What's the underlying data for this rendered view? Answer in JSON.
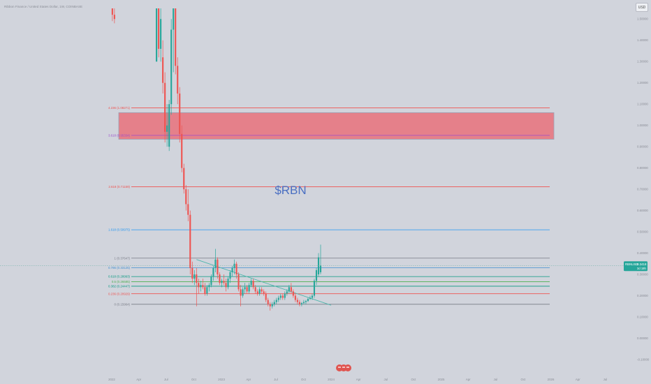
{
  "header": {
    "symbol_line": "Ribbon Finance / United States Dollar, 1W, COINBASE"
  },
  "currency_button": "USD",
  "watermark": "$RBN",
  "price_tag": {
    "symbol": "RBNUSD",
    "price": "0.3418",
    "countdown": "3d 19h"
  },
  "colors": {
    "background": "#d1d4dc",
    "up": "#26a69a",
    "down": "#ef5350",
    "zone_fill": "#e5808a",
    "zone_stroke": "#9aa0b4",
    "trendline": "#4db6ac",
    "watermark": "#4a6fc2",
    "price_line": "#7fb7b0"
  },
  "chart_data": {
    "type": "candlestick",
    "title": "",
    "x_tick_labels": [
      "2022",
      "Apr",
      "Jul",
      "Oct",
      "2023",
      "Apr",
      "Jul",
      "Oct",
      "2024",
      "Apr",
      "Jul",
      "Oct",
      "2025",
      "Apr",
      "Jul",
      "Oct",
      "2026",
      "Apr",
      "Jul"
    ],
    "y_tick_labels": [
      "1.50000",
      "1.40000",
      "1.30000",
      "1.20000",
      "1.10000",
      "1.00000",
      "0.90000",
      "0.80000",
      "0.70000",
      "0.60000",
      "0.50000",
      "0.40000",
      "0.30000",
      "0.20000",
      "0.10000",
      "0.00000",
      "-0.10000"
    ],
    "ylim": [
      -0.11,
      1.55
    ],
    "fib_levels": [
      {
        "label": "4.236 (1.08271)",
        "value": 1.08271,
        "color": "#ef5350"
      },
      {
        "label": "3.618 (0.95334)",
        "value": 0.95334,
        "color": "#9c4dcc"
      },
      {
        "label": "2.618 (0.71159)",
        "value": 0.71159,
        "color": "#ef5350"
      },
      {
        "label": "1.618 (0.50975)",
        "value": 0.50975,
        "color": "#2196f3"
      },
      {
        "label": "1 (0.37647)",
        "value": 0.37647,
        "color": "#787b86"
      },
      {
        "label": "0.786 (0.33125)",
        "value": 0.33125,
        "color": "#3f8fd2"
      },
      {
        "label": "0.618 (0.28993)",
        "value": 0.28993,
        "color": "#089981"
      },
      {
        "label": "0.5 (0.26585)",
        "value": 0.26585,
        "color": "#4caf50"
      },
      {
        "label": "0.382 (0.24447)",
        "value": 0.24447,
        "color": "#089981"
      },
      {
        "label": "0.236 (0.20929)",
        "value": 0.20929,
        "color": "#ef5350"
      },
      {
        "label": "0 (0.15964)",
        "value": 0.15964,
        "color": "#787b86"
      }
    ],
    "resistance_zone": {
      "top": 1.06,
      "bottom": 0.935
    },
    "trendline": {
      "from": {
        "x": "2022-10-10",
        "y": 0.37
      },
      "to": {
        "x": "2024-01-01",
        "y": 0.155
      }
    },
    "current_price": 0.3418,
    "candles": [
      {
        "d": "2022-01-03",
        "o": 1.55,
        "h": 1.55,
        "l": 1.49,
        "c": 1.52
      },
      {
        "d": "2022-01-10",
        "o": 1.52,
        "h": 1.55,
        "l": 1.48,
        "c": 1.5
      },
      {
        "d": "2022-05-30",
        "o": 1.3,
        "h": 1.55,
        "l": 1.3,
        "c": 1.55
      },
      {
        "d": "2022-06-06",
        "o": 1.55,
        "h": 1.55,
        "l": 1.32,
        "c": 1.36
      },
      {
        "d": "2022-06-13",
        "o": 1.36,
        "h": 1.55,
        "l": 1.3,
        "c": 1.5
      },
      {
        "d": "2022-06-20",
        "o": 1.32,
        "h": 1.4,
        "l": 1.15,
        "c": 1.2
      },
      {
        "d": "2022-06-27",
        "o": 1.2,
        "h": 1.25,
        "l": 0.92,
        "c": 0.97
      },
      {
        "d": "2022-07-04",
        "o": 0.97,
        "h": 1.1,
        "l": 0.9,
        "c": 1.0
      },
      {
        "d": "2022-07-11",
        "o": 0.9,
        "h": 1.12,
        "l": 0.88,
        "c": 1.1
      },
      {
        "d": "2022-07-18",
        "o": 1.1,
        "h": 1.5,
        "l": 1.05,
        "c": 1.45
      },
      {
        "d": "2022-07-25",
        "o": 1.45,
        "h": 1.55,
        "l": 1.25,
        "c": 1.55
      },
      {
        "d": "2022-08-01",
        "o": 1.55,
        "h": 1.55,
        "l": 1.24,
        "c": 1.28
      },
      {
        "d": "2022-08-08",
        "o": 1.28,
        "h": 1.32,
        "l": 1.1,
        "c": 1.15
      },
      {
        "d": "2022-08-15",
        "o": 1.15,
        "h": 1.18,
        "l": 0.92,
        "c": 0.96
      },
      {
        "d": "2022-08-22",
        "o": 0.96,
        "h": 1.0,
        "l": 0.78,
        "c": 0.8
      },
      {
        "d": "2022-08-29",
        "o": 0.8,
        "h": 0.82,
        "l": 0.68,
        "c": 0.7
      },
      {
        "d": "2022-09-05",
        "o": 0.7,
        "h": 0.72,
        "l": 0.6,
        "c": 0.63
      },
      {
        "d": "2022-09-12",
        "o": 0.63,
        "h": 0.7,
        "l": 0.55,
        "c": 0.58
      },
      {
        "d": "2022-09-19",
        "o": 0.58,
        "h": 0.6,
        "l": 0.3,
        "c": 0.33
      },
      {
        "d": "2022-09-26",
        "o": 0.33,
        "h": 0.36,
        "l": 0.26,
        "c": 0.28
      },
      {
        "d": "2022-10-03",
        "o": 0.28,
        "h": 0.32,
        "l": 0.25,
        "c": 0.3
      },
      {
        "d": "2022-10-10",
        "o": 0.3,
        "h": 0.33,
        "l": 0.15,
        "c": 0.26
      },
      {
        "d": "2022-10-17",
        "o": 0.26,
        "h": 0.28,
        "l": 0.21,
        "c": 0.24
      },
      {
        "d": "2022-10-24",
        "o": 0.24,
        "h": 0.27,
        "l": 0.22,
        "c": 0.25
      },
      {
        "d": "2022-10-31",
        "o": 0.25,
        "h": 0.28,
        "l": 0.23,
        "c": 0.24
      },
      {
        "d": "2022-11-07",
        "o": 0.24,
        "h": 0.26,
        "l": 0.2,
        "c": 0.21
      },
      {
        "d": "2022-11-14",
        "o": 0.21,
        "h": 0.25,
        "l": 0.2,
        "c": 0.24
      },
      {
        "d": "2022-11-21",
        "o": 0.24,
        "h": 0.26,
        "l": 0.22,
        "c": 0.25
      },
      {
        "d": "2022-11-28",
        "o": 0.25,
        "h": 0.3,
        "l": 0.24,
        "c": 0.29
      },
      {
        "d": "2022-12-05",
        "o": 0.29,
        "h": 0.34,
        "l": 0.27,
        "c": 0.33
      },
      {
        "d": "2022-12-12",
        "o": 0.33,
        "h": 0.42,
        "l": 0.31,
        "c": 0.37
      },
      {
        "d": "2022-12-19",
        "o": 0.37,
        "h": 0.38,
        "l": 0.28,
        "c": 0.3
      },
      {
        "d": "2022-12-26",
        "o": 0.3,
        "h": 0.31,
        "l": 0.25,
        "c": 0.26
      },
      {
        "d": "2023-01-02",
        "o": 0.26,
        "h": 0.28,
        "l": 0.24,
        "c": 0.27
      },
      {
        "d": "2023-01-09",
        "o": 0.27,
        "h": 0.3,
        "l": 0.25,
        "c": 0.26
      },
      {
        "d": "2023-01-16",
        "o": 0.26,
        "h": 0.28,
        "l": 0.22,
        "c": 0.24
      },
      {
        "d": "2023-01-23",
        "o": 0.24,
        "h": 0.29,
        "l": 0.23,
        "c": 0.28
      },
      {
        "d": "2023-01-30",
        "o": 0.28,
        "h": 0.32,
        "l": 0.26,
        "c": 0.31
      },
      {
        "d": "2023-02-06",
        "o": 0.31,
        "h": 0.34,
        "l": 0.29,
        "c": 0.33
      },
      {
        "d": "2023-02-13",
        "o": 0.33,
        "h": 0.37,
        "l": 0.3,
        "c": 0.35
      },
      {
        "d": "2023-02-20",
        "o": 0.35,
        "h": 0.36,
        "l": 0.28,
        "c": 0.3
      },
      {
        "d": "2023-02-27",
        "o": 0.3,
        "h": 0.31,
        "l": 0.22,
        "c": 0.23
      },
      {
        "d": "2023-03-06",
        "o": 0.23,
        "h": 0.25,
        "l": 0.15,
        "c": 0.2
      },
      {
        "d": "2023-03-13",
        "o": 0.2,
        "h": 0.24,
        "l": 0.19,
        "c": 0.23
      },
      {
        "d": "2023-03-20",
        "o": 0.23,
        "h": 0.26,
        "l": 0.21,
        "c": 0.24
      },
      {
        "d": "2023-03-27",
        "o": 0.24,
        "h": 0.25,
        "l": 0.21,
        "c": 0.22
      },
      {
        "d": "2023-04-03",
        "o": 0.22,
        "h": 0.26,
        "l": 0.21,
        "c": 0.25
      },
      {
        "d": "2023-04-10",
        "o": 0.25,
        "h": 0.28,
        "l": 0.24,
        "c": 0.27
      },
      {
        "d": "2023-04-17",
        "o": 0.27,
        "h": 0.28,
        "l": 0.23,
        "c": 0.24
      },
      {
        "d": "2023-04-24",
        "o": 0.24,
        "h": 0.25,
        "l": 0.21,
        "c": 0.22
      },
      {
        "d": "2023-05-01",
        "o": 0.22,
        "h": 0.23,
        "l": 0.2,
        "c": 0.21
      },
      {
        "d": "2023-05-08",
        "o": 0.21,
        "h": 0.24,
        "l": 0.2,
        "c": 0.23
      },
      {
        "d": "2023-05-15",
        "o": 0.23,
        "h": 0.24,
        "l": 0.21,
        "c": 0.22
      },
      {
        "d": "2023-05-22",
        "o": 0.22,
        "h": 0.23,
        "l": 0.2,
        "c": 0.21
      },
      {
        "d": "2023-05-29",
        "o": 0.21,
        "h": 0.22,
        "l": 0.17,
        "c": 0.18
      },
      {
        "d": "2023-06-05",
        "o": 0.18,
        "h": 0.19,
        "l": 0.15,
        "c": 0.16
      },
      {
        "d": "2023-06-12",
        "o": 0.16,
        "h": 0.17,
        "l": 0.13,
        "c": 0.15
      },
      {
        "d": "2023-06-19",
        "o": 0.15,
        "h": 0.17,
        "l": 0.14,
        "c": 0.16
      },
      {
        "d": "2023-06-26",
        "o": 0.16,
        "h": 0.18,
        "l": 0.15,
        "c": 0.17
      },
      {
        "d": "2023-07-03",
        "o": 0.17,
        "h": 0.19,
        "l": 0.16,
        "c": 0.18
      },
      {
        "d": "2023-07-10",
        "o": 0.18,
        "h": 0.2,
        "l": 0.17,
        "c": 0.19
      },
      {
        "d": "2023-07-17",
        "o": 0.19,
        "h": 0.21,
        "l": 0.18,
        "c": 0.2
      },
      {
        "d": "2023-07-24",
        "o": 0.2,
        "h": 0.21,
        "l": 0.18,
        "c": 0.19
      },
      {
        "d": "2023-07-31",
        "o": 0.19,
        "h": 0.22,
        "l": 0.18,
        "c": 0.21
      },
      {
        "d": "2023-08-07",
        "o": 0.21,
        "h": 0.23,
        "l": 0.2,
        "c": 0.22
      },
      {
        "d": "2023-08-14",
        "o": 0.22,
        "h": 0.25,
        "l": 0.21,
        "c": 0.24
      },
      {
        "d": "2023-08-21",
        "o": 0.24,
        "h": 0.26,
        "l": 0.21,
        "c": 0.22
      },
      {
        "d": "2023-08-28",
        "o": 0.22,
        "h": 0.23,
        "l": 0.19,
        "c": 0.2
      },
      {
        "d": "2023-09-04",
        "o": 0.2,
        "h": 0.21,
        "l": 0.17,
        "c": 0.18
      },
      {
        "d": "2023-09-11",
        "o": 0.18,
        "h": 0.19,
        "l": 0.16,
        "c": 0.17
      },
      {
        "d": "2023-09-18",
        "o": 0.17,
        "h": 0.18,
        "l": 0.15,
        "c": 0.16
      },
      {
        "d": "2023-09-25",
        "o": 0.16,
        "h": 0.17,
        "l": 0.15,
        "c": 0.165
      },
      {
        "d": "2023-10-02",
        "o": 0.165,
        "h": 0.18,
        "l": 0.16,
        "c": 0.17
      },
      {
        "d": "2023-10-09",
        "o": 0.17,
        "h": 0.18,
        "l": 0.16,
        "c": 0.175
      },
      {
        "d": "2023-10-16",
        "o": 0.175,
        "h": 0.19,
        "l": 0.17,
        "c": 0.185
      },
      {
        "d": "2023-10-23",
        "o": 0.185,
        "h": 0.2,
        "l": 0.18,
        "c": 0.19
      },
      {
        "d": "2023-10-30",
        "o": 0.19,
        "h": 0.21,
        "l": 0.18,
        "c": 0.2
      },
      {
        "d": "2023-11-06",
        "o": 0.2,
        "h": 0.28,
        "l": 0.19,
        "c": 0.27
      },
      {
        "d": "2023-11-13",
        "o": 0.27,
        "h": 0.33,
        "l": 0.25,
        "c": 0.32
      },
      {
        "d": "2023-11-20",
        "o": 0.3,
        "h": 0.4,
        "l": 0.29,
        "c": 0.38
      },
      {
        "d": "2023-11-27",
        "o": 0.31,
        "h": 0.44,
        "l": 0.3,
        "c": 0.3418
      }
    ]
  }
}
